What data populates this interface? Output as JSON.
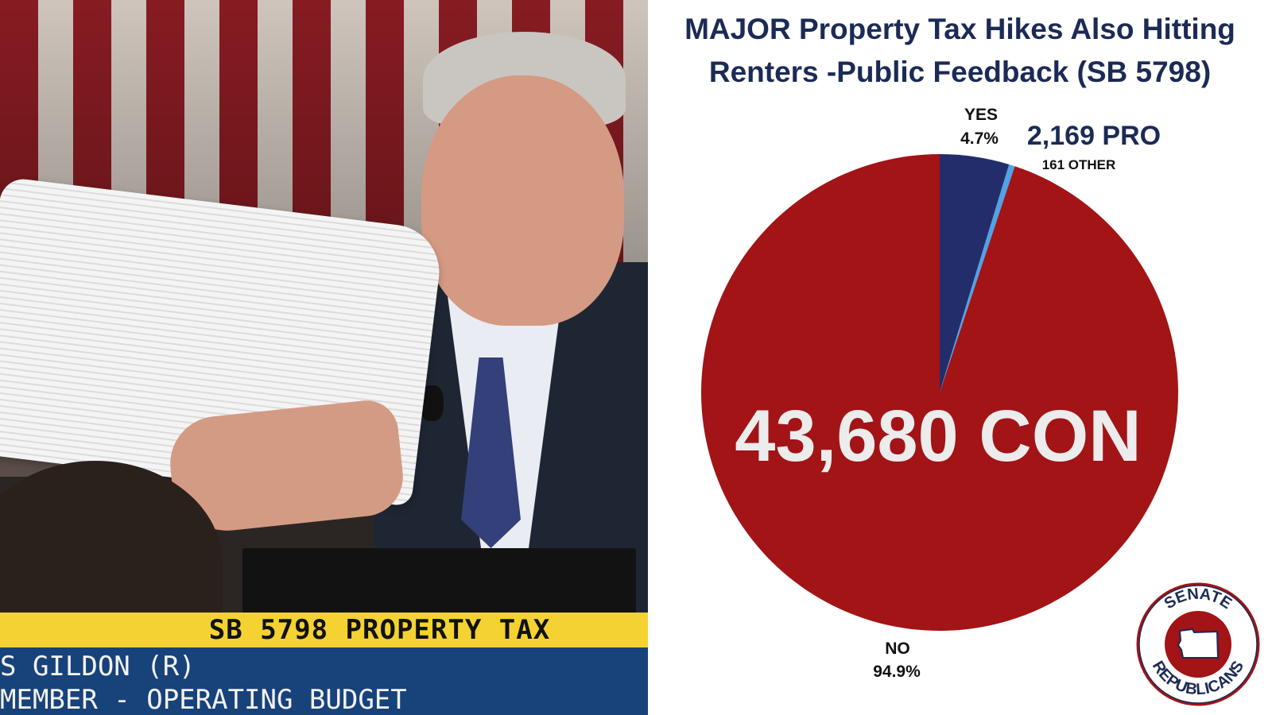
{
  "photo": {
    "chyron_title": "SB 5798 PROPERTY TAX",
    "chyron_name": "S GILDON (R)",
    "chyron_role": "MEMBER - OPERATING BUDGET"
  },
  "chart_data": {
    "type": "pie",
    "title_line1": "MAJOR Property Tax Hikes Also Hitting",
    "title_line2": "Renters -Public Feedback (SB 5798)",
    "slices": [
      {
        "name": "YES",
        "percent": 4.7,
        "percent_label": "4.7%",
        "count": 2169,
        "count_label": "2,169 PRO",
        "color": "#242d6b"
      },
      {
        "name": "OTHER",
        "percent": 0.4,
        "count": 161,
        "count_label": "161 OTHER",
        "color": "#4fa3e6"
      },
      {
        "name": "NO",
        "percent": 94.9,
        "percent_label": "94.9%",
        "count": 43680,
        "count_label": "43,680 CON",
        "color": "#a21416"
      }
    ]
  },
  "logo": {
    "top_text": "SENATE",
    "bottom_text": "REPUBLICANS",
    "colors": {
      "ring": "#a21416",
      "text": "#1c2b55",
      "state": "#a21416"
    }
  }
}
